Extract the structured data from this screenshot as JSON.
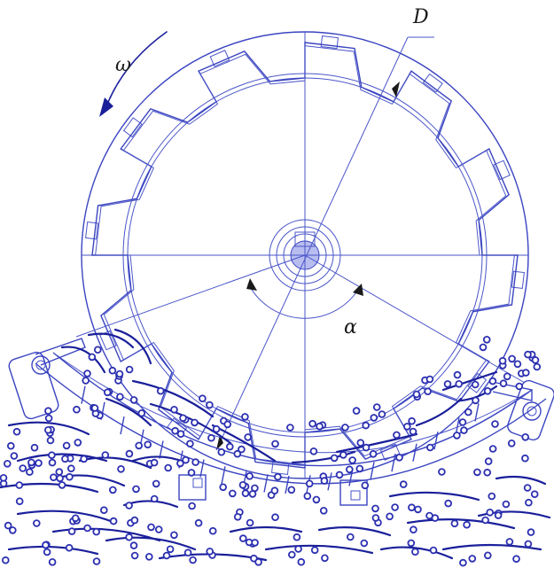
{
  "labels": {
    "diameter": "D",
    "angular_velocity": "ω",
    "angle": "α"
  },
  "colors": {
    "line": "#4a55c8",
    "dark_line": "#1a1f9a",
    "particle": "#2b2fb0",
    "text": "#1a1a1a"
  }
}
